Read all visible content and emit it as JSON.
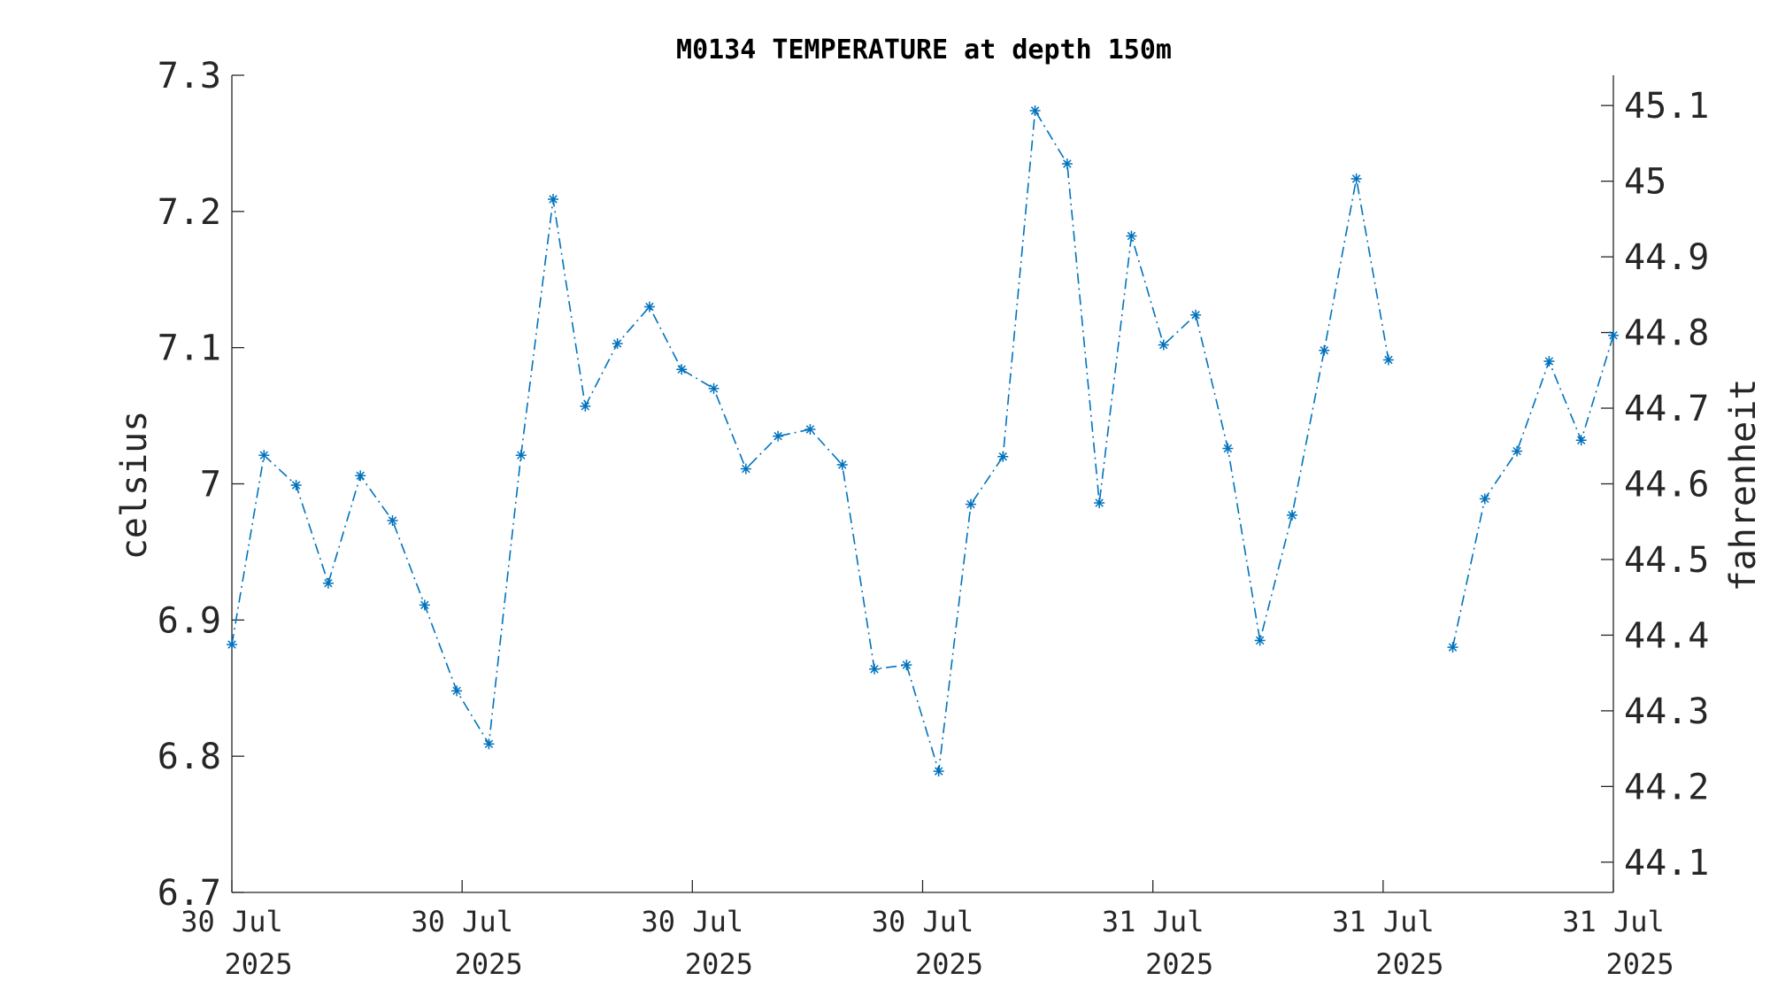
{
  "chart_data": {
    "type": "line",
    "title": "M0134 TEMPERATURE at depth 150m",
    "xlabel": "",
    "ylabel": "celsius",
    "ylabel_right": "fahrenheit",
    "ylim": [
      6.7,
      7.3
    ],
    "ylim_right": [
      44.06,
      45.14
    ],
    "yticks": [
      "6.7",
      "6.8",
      "6.9",
      "7",
      "7.1",
      "7.2",
      "7.3"
    ],
    "yticks_right": [
      "44.1",
      "44.2",
      "44.3",
      "44.4",
      "44.5",
      "44.6",
      "44.7",
      "44.8",
      "44.9",
      "45",
      "45.1"
    ],
    "x_ticks": [
      {
        "line1": "30 Jul",
        "line2": "2025"
      },
      {
        "line1": "30 Jul",
        "line2": "2025"
      },
      {
        "line1": "30 Jul",
        "line2": "2025"
      },
      {
        "line1": "30 Jul",
        "line2": "2025"
      },
      {
        "line1": "31 Jul",
        "line2": "2025"
      },
      {
        "line1": "31 Jul",
        "line2": "2025"
      },
      {
        "line1": "31 Jul",
        "line2": "2025"
      }
    ],
    "grid": false,
    "marker": "*",
    "line_style": "dash-dot",
    "color": "#0072BD",
    "series": [
      {
        "values": [
          6.882,
          7.021,
          6.999,
          6.927,
          7.006,
          6.973,
          6.911,
          6.848,
          6.809,
          7.021,
          7.209,
          7.057,
          7.103,
          7.13,
          7.084,
          7.07,
          7.011,
          7.035,
          7.04,
          7.014,
          6.864,
          6.867,
          6.789,
          6.985,
          7.02,
          7.274,
          7.235,
          6.986,
          7.182,
          7.102,
          7.124,
          7.026,
          6.885,
          6.977,
          7.098,
          7.224,
          7.091,
          null,
          6.88,
          6.989,
          7.024,
          7.09,
          7.032,
          7.109
        ]
      }
    ]
  }
}
